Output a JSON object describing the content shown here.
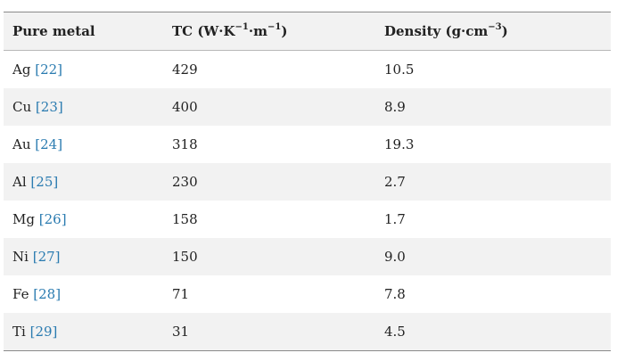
{
  "table": {
    "headers": {
      "metal": "Pure metal",
      "tc_base": "TC (W·K",
      "tc_exp1": "−1",
      "tc_mid": "·m",
      "tc_exp2": "−1",
      "tc_end": ")",
      "density_base": "Density (g·cm",
      "density_exp": "−3",
      "density_end": ")"
    },
    "rows": [
      {
        "metal": "Ag",
        "ref": "[22]",
        "tc": "429",
        "density": "10.5"
      },
      {
        "metal": "Cu",
        "ref": "[23]",
        "tc": "400",
        "density": "8.9"
      },
      {
        "metal": "Au",
        "ref": "[24]",
        "tc": "318",
        "density": "19.3"
      },
      {
        "metal": "Al",
        "ref": "[25]",
        "tc": "230",
        "density": "2.7"
      },
      {
        "metal": "Mg",
        "ref": "[26]",
        "tc": "158",
        "density": "1.7"
      },
      {
        "metal": "Ni",
        "ref": "[27]",
        "tc": "150",
        "density": "9.0"
      },
      {
        "metal": "Fe",
        "ref": "[28]",
        "tc": "71",
        "density": "7.8"
      },
      {
        "metal": "Ti",
        "ref": "[29]",
        "tc": "31",
        "density": "4.5"
      }
    ]
  }
}
